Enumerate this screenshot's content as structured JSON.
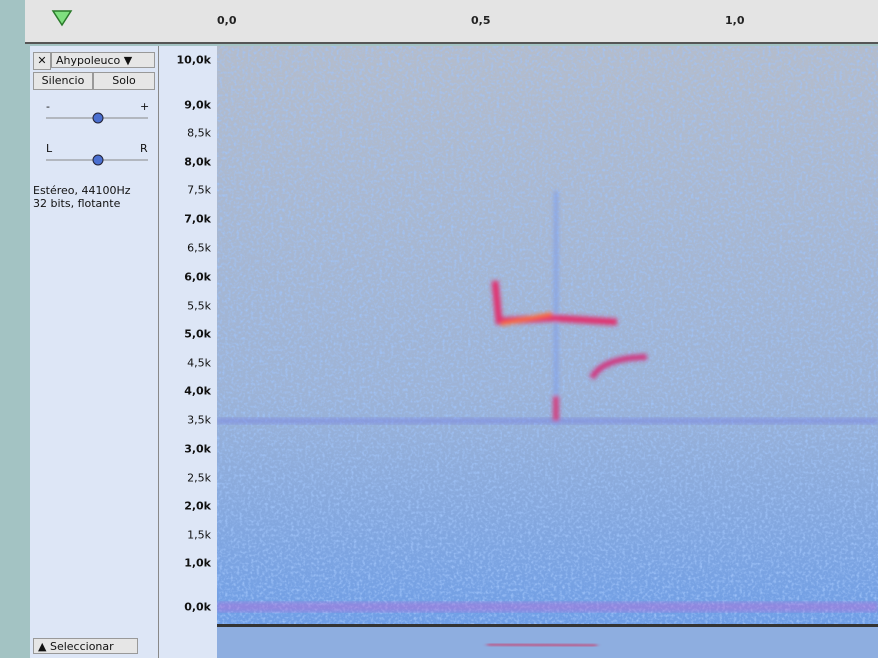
{
  "ruler": {
    "labels": [
      "0,0",
      "0,5",
      "1,0"
    ]
  },
  "track": {
    "name": "Ahypoleuco",
    "mute": "Silencio",
    "solo": "Solo",
    "gain_min": "-",
    "gain_max": "+",
    "pan_left": "L",
    "pan_right": "R",
    "info": [
      "Estéreo, 44100Hz",
      "32 bits, flotante"
    ],
    "select": "Seleccionar"
  },
  "frequency_axis": {
    "labels": [
      "10,0k",
      "9,0k",
      "8,5k",
      "8,0k",
      "7,5k",
      "7,0k",
      "6,5k",
      "6,0k",
      "5,5k",
      "5,0k",
      "4,5k",
      "4,0k",
      "3,5k",
      "3,0k",
      "2,5k",
      "2,0k",
      "1,5k",
      "1,0k",
      "0,0k"
    ]
  }
}
